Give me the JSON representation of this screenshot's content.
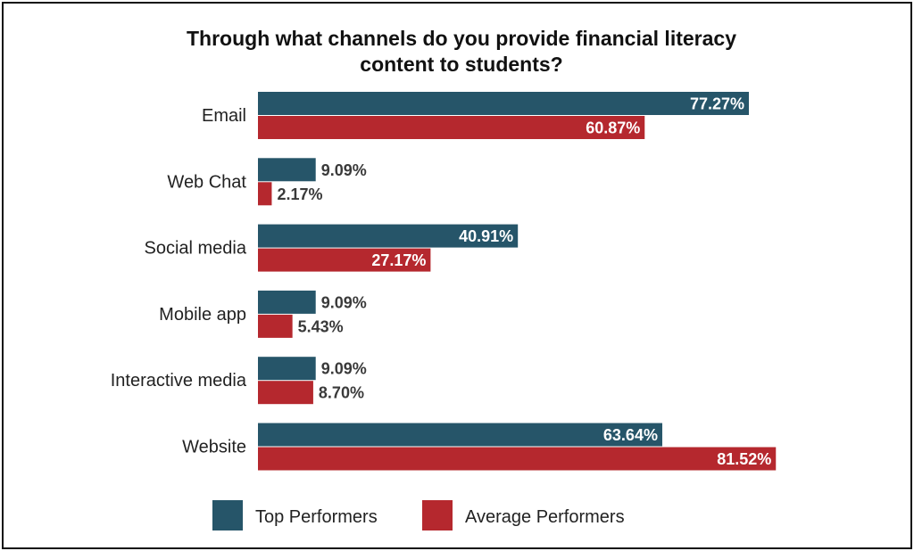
{
  "chart_data": {
    "type": "bar",
    "orientation": "horizontal",
    "title": "Through what channels do you provide financial literacy content to students?",
    "title_lines": [
      "Through what channels do you provide financial literacy",
      "content to students?"
    ],
    "categories": [
      "Email",
      "Web Chat",
      "Social media",
      "Mobile app",
      "Interactive media",
      "Website"
    ],
    "series": [
      {
        "name": "Top Performers",
        "color": "#265569",
        "values": [
          77.27,
          9.09,
          40.91,
          9.09,
          9.09,
          63.64
        ],
        "labels": [
          "77.27%",
          "9.09%",
          "40.91%",
          "9.09%",
          "9.09%",
          "63.64%"
        ]
      },
      {
        "name": "Average Performers",
        "color": "#b5282e",
        "values": [
          60.87,
          2.17,
          27.17,
          5.43,
          8.7,
          81.52
        ],
        "labels": [
          "60.87%",
          "2.17%",
          "27.17%",
          "5.43%",
          "8.70%",
          "81.52%"
        ]
      }
    ],
    "xlim": [
      0,
      100
    ],
    "grid": false,
    "legend_position": "bottom",
    "xaxis_visible": false
  }
}
